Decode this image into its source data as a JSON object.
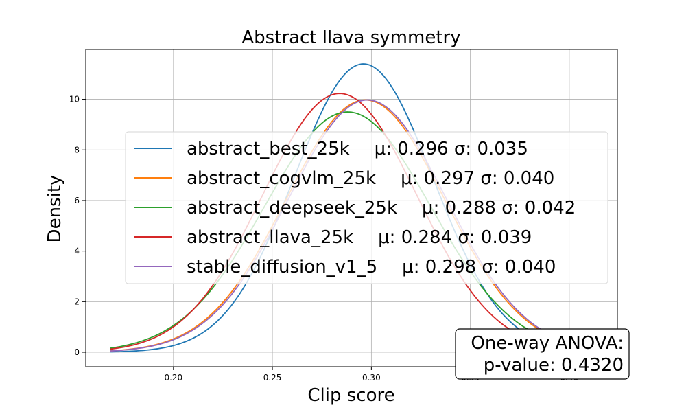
{
  "chart_data": {
    "type": "line",
    "title": "Abstract llava symmetry",
    "xlabel": "Clip score",
    "ylabel": "Density",
    "xlim": [
      0.1557,
      0.4243
    ],
    "ylim": [
      -0.57,
      11.97
    ],
    "xticks": [
      0.2,
      0.25,
      0.3,
      0.35,
      0.4
    ],
    "xtick_labels": [
      "0.20",
      "0.25",
      "0.30",
      "0.35",
      "0.40"
    ],
    "yticks": [
      0,
      2,
      4,
      6,
      8,
      10
    ],
    "ytick_labels": [
      "0",
      "2",
      "4",
      "6",
      "8",
      "10"
    ],
    "grid": true,
    "legend_position": "center",
    "curve_x_range": [
      0.168,
      0.412
    ],
    "series": [
      {
        "name": "abstract_best_25k",
        "stats": "μ: 0.296 σ: 0.035",
        "mean": 0.296,
        "sigma": 0.035,
        "color": "#1f77b4"
      },
      {
        "name": "abstract_cogvlm_25k",
        "stats": "μ: 0.297 σ: 0.040",
        "mean": 0.297,
        "sigma": 0.04,
        "color": "#ff7f0e"
      },
      {
        "name": "abstract_deepseek_25k",
        "stats": "μ: 0.288 σ: 0.042",
        "mean": 0.288,
        "sigma": 0.042,
        "color": "#2ca02c"
      },
      {
        "name": "abstract_llava_25k",
        "stats": "μ: 0.284 σ: 0.039",
        "mean": 0.284,
        "sigma": 0.039,
        "color": "#d62728"
      },
      {
        "name": "stable_diffusion_v1_5",
        "stats": "μ: 0.298 σ: 0.040",
        "mean": 0.298,
        "sigma": 0.04,
        "color": "#9467bd"
      }
    ],
    "annotation": {
      "line1": "One-way ANOVA:",
      "line2": "p-value: 0.4320"
    }
  }
}
